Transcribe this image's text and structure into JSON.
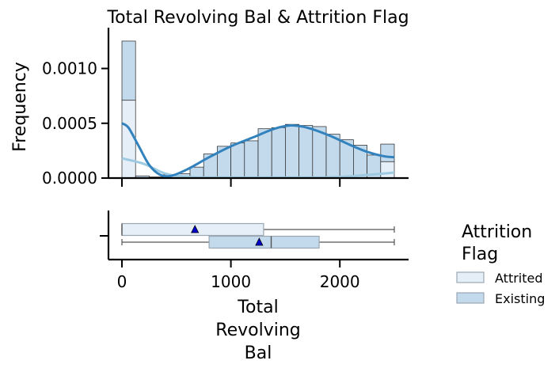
{
  "chart_data": [
    {
      "type": "histogram",
      "title": "Total Revolving Bal & Attrition Flag",
      "ylabel": "Frequency",
      "xlabel": "",
      "xlim": [
        -100,
        2640
      ],
      "ylim": [
        0,
        0.0013
      ],
      "y_ticks": [
        0.0,
        0.0005,
        0.001
      ],
      "y_tick_labels": [
        "0.0000",
        "0.0005",
        "0.0010"
      ],
      "x_ticks": [
        0,
        1000,
        2000
      ],
      "bin_edges": [
        0,
        125,
        250,
        375,
        500,
        625,
        750,
        875,
        1000,
        1125,
        1250,
        1375,
        1500,
        1625,
        1750,
        1875,
        2000,
        2125,
        2250,
        2375,
        2500
      ],
      "series": [
        {
          "name": "Attrited",
          "color": "#e6eff8",
          "values": [
            0.00071,
            0.0,
            0.0,
            0.0,
            0.0,
            0.0,
            0.0,
            0.0,
            0.0,
            0.0,
            0.0,
            0.0,
            0.0,
            0.0,
            0.0,
            0.0,
            0.0,
            0.0,
            0.0,
            0.00015
          ],
          "kde": [
            [
              0,
              0.00018
            ],
            [
              200,
              0.00013
            ],
            [
              400,
              4e-05
            ],
            [
              600,
              1e-05
            ],
            [
              900,
              5e-06
            ],
            [
              1500,
              5e-06
            ],
            [
              2000,
              1e-05
            ],
            [
              2500,
              5e-05
            ]
          ]
        },
        {
          "name": "Existing",
          "color": "#c3d9ec",
          "values": [
            0.00054,
            2e-05,
            1e-05,
            3e-05,
            4e-05,
            0.0001,
            0.00022,
            0.00029,
            0.00032,
            0.00034,
            0.00045,
            0.00046,
            0.00049,
            0.00048,
            0.00047,
            0.0004,
            0.00035,
            0.0003,
            0.00021,
            0.00016
          ],
          "kde": [
            [
              0,
              0.0005
            ],
            [
              60,
              0.00046
            ],
            [
              150,
              0.0003
            ],
            [
              250,
              0.00012
            ],
            [
              350,
              3e-05
            ],
            [
              450,
              2e-05
            ],
            [
              600,
              8e-05
            ],
            [
              800,
              0.00019
            ],
            [
              1000,
              0.00029
            ],
            [
              1200,
              0.00037
            ],
            [
              1400,
              0.00045
            ],
            [
              1550,
              0.00048
            ],
            [
              1700,
              0.00046
            ],
            [
              1900,
              0.00039
            ],
            [
              2100,
              0.0003
            ],
            [
              2250,
              0.00024
            ],
            [
              2400,
              0.0002
            ],
            [
              2500,
              0.00019
            ]
          ]
        }
      ]
    },
    {
      "type": "boxplot",
      "xlabel": "Total\nRevolving\nBal",
      "xlim": [
        -100,
        2640
      ],
      "x_ticks": [
        0,
        1000,
        2000
      ],
      "x_tick_labels": [
        "0",
        "1000",
        "2000"
      ],
      "series": [
        {
          "name": "Attrited",
          "color": "#e6eff8",
          "min": 0,
          "q1": 0,
          "median": 0,
          "q3": 1300,
          "max": 2500,
          "mean": 670
        },
        {
          "name": "Existing",
          "color": "#c3d9ec",
          "min": 0,
          "q1": 800,
          "median": 1370,
          "q3": 1810,
          "max": 2500,
          "mean": 1260
        }
      ]
    }
  ],
  "legend": {
    "title": "Attrition Flag",
    "title_lines": [
      "Attrition",
      "Flag"
    ],
    "placement": "right",
    "items": [
      {
        "label": "Attrited",
        "color": "#e6eff8"
      },
      {
        "label": "Existing",
        "color": "#c3d9ec"
      }
    ]
  },
  "colors": {
    "kde_existing": "#3182bd",
    "kde_attrited": "#9ecae1",
    "mean_marker": "#0000cd",
    "box_edge": "#9aa7b3"
  }
}
